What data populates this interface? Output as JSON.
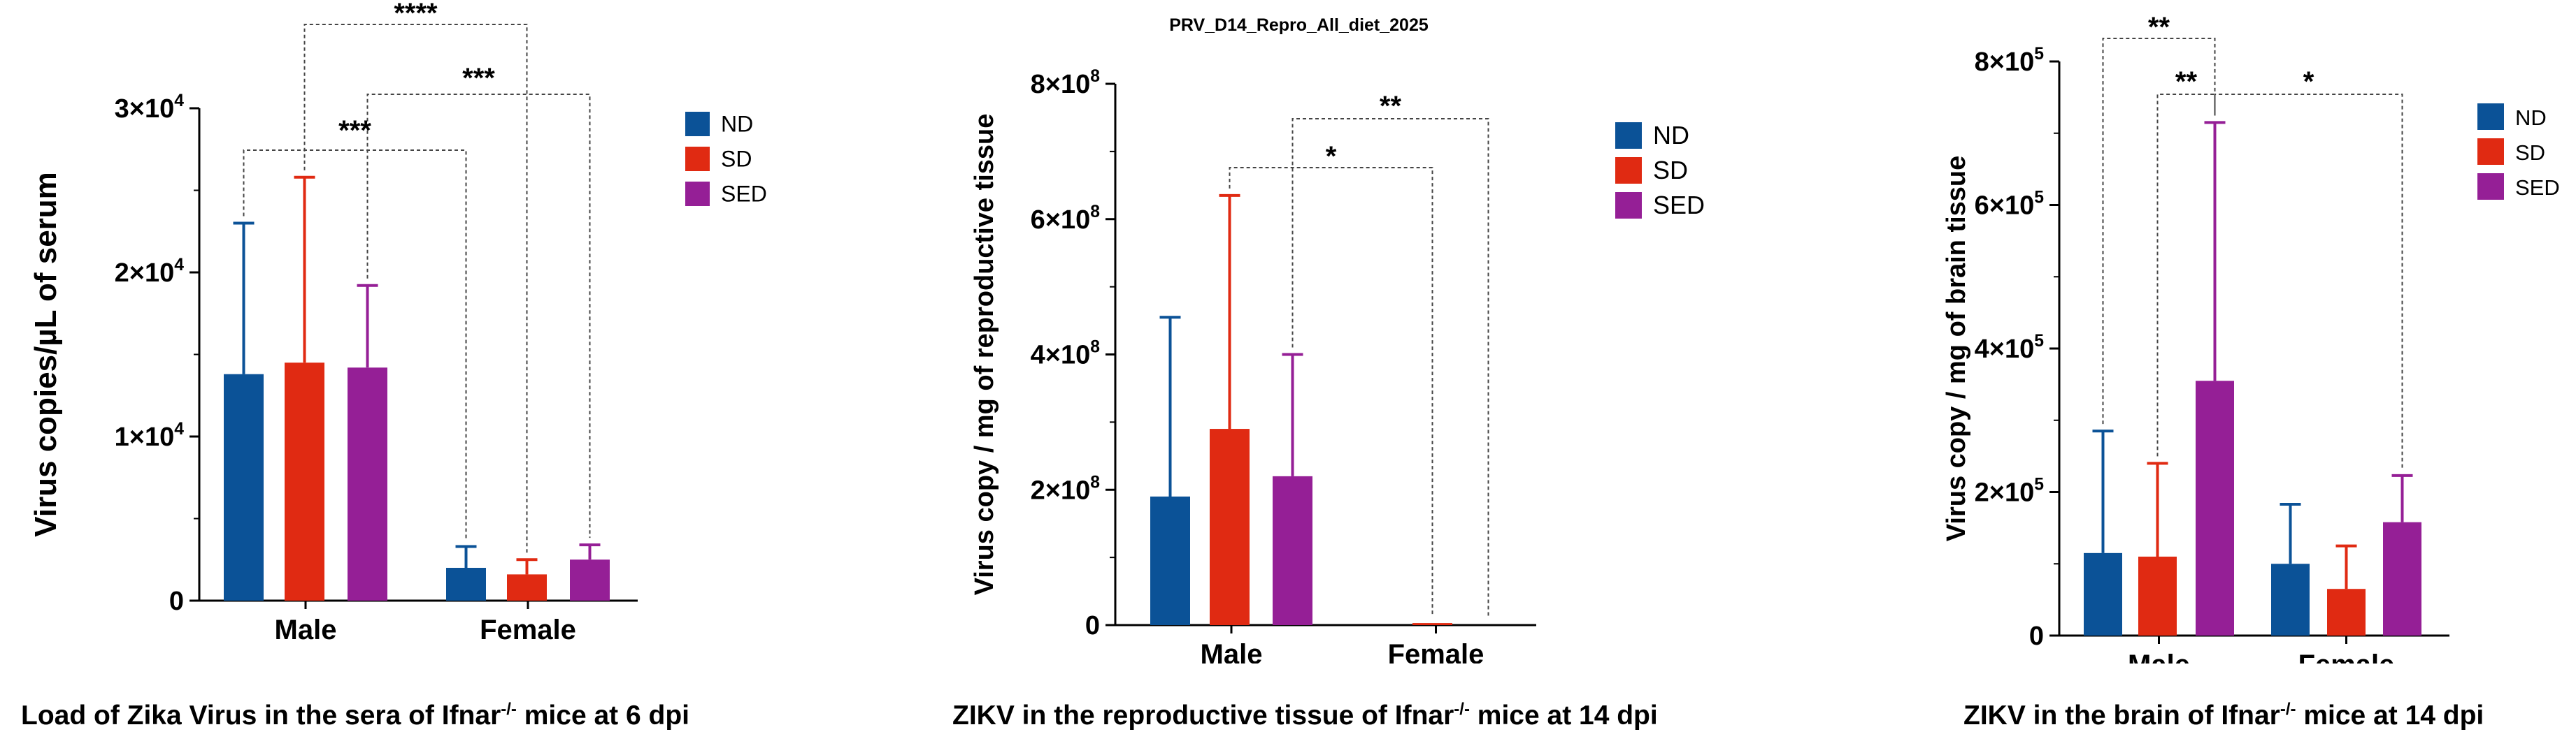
{
  "legend_labels": [
    "ND",
    "SD",
    "SED"
  ],
  "colors": {
    "ND": "#0B5297",
    "SD": "#E02A12",
    "SED": "#951F96"
  },
  "chart_data": [
    {
      "type": "bar",
      "title": "",
      "categories": [
        "Male",
        "Female"
      ],
      "series": [
        {
          "name": "ND",
          "values": [
            13800,
            2000
          ],
          "errors": [
            9200,
            1300
          ]
        },
        {
          "name": "SD",
          "values": [
            14500,
            1600
          ],
          "errors": [
            11300,
            900
          ]
        },
        {
          "name": "SED",
          "values": [
            14200,
            2500
          ],
          "errors": [
            5000,
            900
          ]
        }
      ],
      "ylabel": "Virus copies/µL of serum",
      "ylim": [
        0,
        30000
      ],
      "ticks": [
        {
          "v": 0,
          "m": "0",
          "e": ""
        },
        {
          "v": 10000,
          "m": "1×10",
          "e": "4"
        },
        {
          "v": 20000,
          "m": "2×10",
          "e": "4"
        },
        {
          "v": 30000,
          "m": "3×10",
          "e": "4"
        }
      ],
      "significance": [
        {
          "label": "****",
          "from": "Male-SD",
          "to": "Female-SD"
        },
        {
          "label": "***",
          "from": "Male-SED",
          "to": "Female-SED"
        },
        {
          "label": "***",
          "from": "Male-ND",
          "to": "Female-ND"
        }
      ],
      "caption_pre": "Load of Zika Virus  in the sera of Ifnar",
      "caption_sup": "-/-",
      "caption_post": " mice at 6 dpi"
    },
    {
      "type": "bar",
      "title": "PRV_D14_Repro_All_diet_2025",
      "categories": [
        "Male",
        "Female"
      ],
      "series": [
        {
          "name": "ND",
          "values": [
            190000000,
            0
          ],
          "errors": [
            265000000,
            0
          ]
        },
        {
          "name": "SD",
          "values": [
            290000000,
            3000000
          ],
          "errors": [
            345000000,
            0
          ]
        },
        {
          "name": "SED",
          "values": [
            220000000,
            0
          ],
          "errors": [
            180000000,
            0
          ]
        }
      ],
      "ylabel": "Virus copy / mg of reproductive tissue",
      "ylim": [
        0,
        800000000
      ],
      "ticks": [
        {
          "v": 0,
          "m": "0",
          "e": ""
        },
        {
          "v": 200000000,
          "m": "2×10",
          "e": "8"
        },
        {
          "v": 400000000,
          "m": "4×10",
          "e": "8"
        },
        {
          "v": 600000000,
          "m": "6×10",
          "e": "8"
        },
        {
          "v": 800000000,
          "m": "8×10",
          "e": "8"
        }
      ],
      "significance": [
        {
          "label": "**",
          "from": "Male-SED",
          "to": "Female-SED"
        },
        {
          "label": "*",
          "from": "Male-SD",
          "to": "Female-SD"
        }
      ],
      "caption_pre": "ZIKV in the reproductive tissue of Ifnar",
      "caption_sup": "-/-",
      "caption_post": " mice at 14 dpi"
    },
    {
      "type": "bar",
      "title": "",
      "categories": [
        "Male",
        "Female"
      ],
      "series": [
        {
          "name": "ND",
          "values": [
            115000,
            100000
          ],
          "errors": [
            170000,
            83000
          ]
        },
        {
          "name": "SD",
          "values": [
            110000,
            65000
          ],
          "errors": [
            130000,
            60000
          ]
        },
        {
          "name": "SED",
          "values": [
            355000,
            158000
          ],
          "errors": [
            360000,
            65000
          ]
        }
      ],
      "ylabel": "Virus copy / mg of brain tissue",
      "ylim": [
        0,
        800000
      ],
      "ticks": [
        {
          "v": 0,
          "m": "0",
          "e": ""
        },
        {
          "v": 200000,
          "m": "2×10",
          "e": "5"
        },
        {
          "v": 400000,
          "m": "4×10",
          "e": "5"
        },
        {
          "v": 600000,
          "m": "6×10",
          "e": "5"
        },
        {
          "v": 800000,
          "m": "8×10",
          "e": "5"
        }
      ],
      "significance": [
        {
          "label": "**",
          "from": "Male-ND",
          "to": "Male-SED"
        },
        {
          "label": "**",
          "from": "Male-SD",
          "to": "Male-SED"
        },
        {
          "label": "*",
          "from": "Male-SED",
          "to": "Female-SED"
        }
      ],
      "caption_pre": "ZIKV in the brain of Ifnar",
      "caption_sup": "-/-",
      "caption_post": " mice at 14 dpi"
    }
  ]
}
